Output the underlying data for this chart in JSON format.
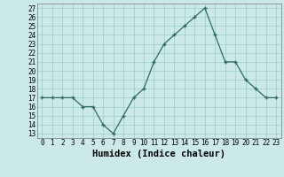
{
  "x": [
    0,
    1,
    2,
    3,
    4,
    5,
    6,
    7,
    8,
    9,
    10,
    11,
    12,
    13,
    14,
    15,
    16,
    17,
    18,
    19,
    20,
    21,
    22,
    23
  ],
  "y": [
    17,
    17,
    17,
    17,
    16,
    16,
    14,
    13,
    15,
    17,
    18,
    21,
    23,
    24,
    25,
    26,
    27,
    24,
    21,
    21,
    19,
    18,
    17,
    17
  ],
  "xlabel": "Humidex (Indice chaleur)",
  "xlim": [
    -0.5,
    23.5
  ],
  "ylim": [
    12.5,
    27.5
  ],
  "yticks": [
    13,
    14,
    15,
    16,
    17,
    18,
    19,
    20,
    21,
    22,
    23,
    24,
    25,
    26,
    27
  ],
  "xticks": [
    0,
    1,
    2,
    3,
    4,
    5,
    6,
    7,
    8,
    9,
    10,
    11,
    12,
    13,
    14,
    15,
    16,
    17,
    18,
    19,
    20,
    21,
    22,
    23
  ],
  "line_color": "#2e6b5e",
  "marker": "+",
  "bg_color": "#cce9e9",
  "grid_color": "#99cccc",
  "tick_fontsize": 5.5,
  "xlabel_fontsize": 7.5,
  "marker_size": 3.5,
  "linewidth": 0.9
}
